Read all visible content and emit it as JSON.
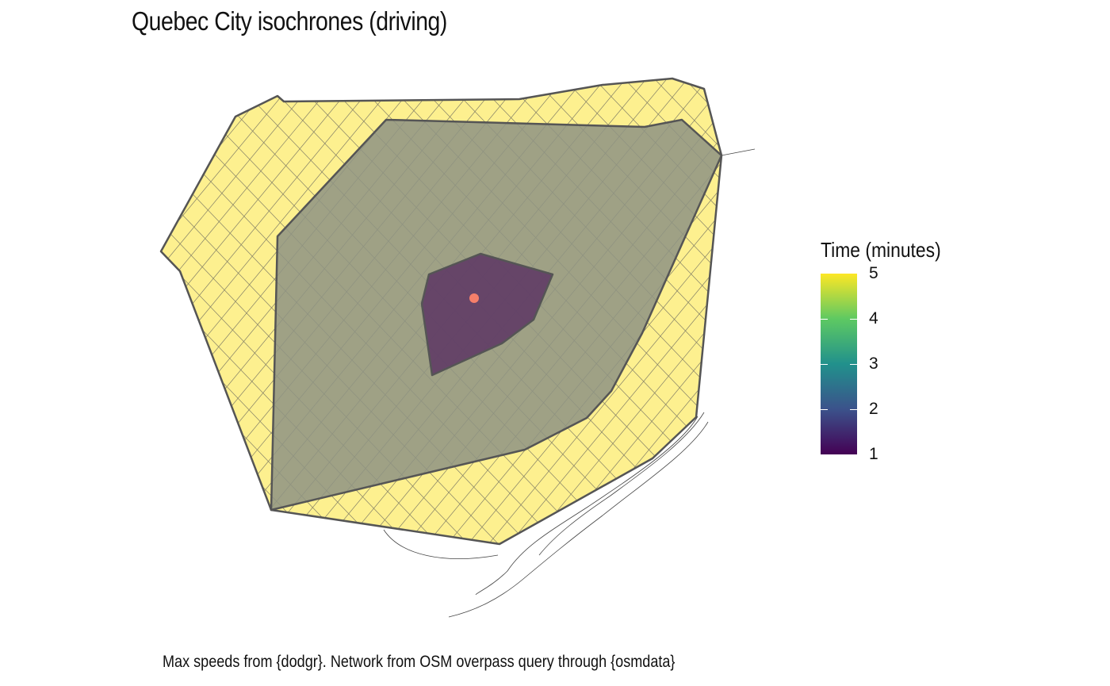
{
  "title": "Quebec City isochrones (driving)",
  "caption": "Max speeds from {dodgr}. Network from OSM overpass query through {osmdata}",
  "legend": {
    "title": "Time (minutes)",
    "ticks": [
      "5",
      "4",
      "3",
      "2",
      "1"
    ]
  },
  "colors": {
    "outer_isochrone": "#fdf08f",
    "middle_isochrone": "#9c9e87",
    "inner_isochrone": "#6e4d70",
    "origin_point": "#f67f6a",
    "isochrone_border": "#555555",
    "roads": "#555555"
  },
  "layers": [
    {
      "name": "5-minute isochrone",
      "minutes": 5
    },
    {
      "name": "3-minute isochrone",
      "minutes": 3
    },
    {
      "name": "1-minute isochrone",
      "minutes": 1
    }
  ]
}
